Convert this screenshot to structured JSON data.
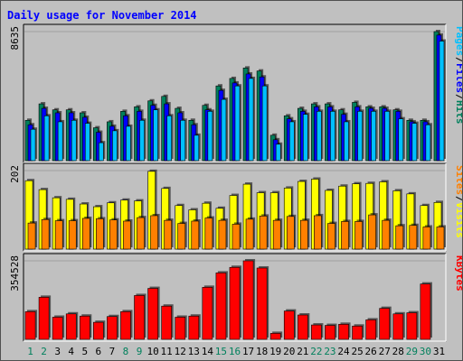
{
  "title": "Daily usage for November 2014",
  "colors": {
    "background": "#c0c0c0",
    "hits": "#00805c",
    "files": "#0000ff",
    "pages": "#00c0ff",
    "visits": "#ffff00",
    "sites": "#ff8000",
    "kbytes": "#ff0000",
    "title": "#0000ff",
    "weekday_tick": "#000000",
    "weekend_tick": "#00805c"
  },
  "chart_data": {
    "type": "bar",
    "categories": [
      "1",
      "2",
      "3",
      "4",
      "5",
      "6",
      "7",
      "8",
      "9",
      "10",
      "11",
      "12",
      "13",
      "14",
      "15",
      "16",
      "17",
      "18",
      "19",
      "20",
      "21",
      "22",
      "23",
      "24",
      "25",
      "26",
      "27",
      "28",
      "29",
      "30",
      "31"
    ],
    "weekend_days": [
      "1",
      "2",
      "8",
      "9",
      "15",
      "16",
      "22",
      "23",
      "29",
      "30"
    ],
    "panels": [
      {
        "id": "hits-files-pages",
        "ymax_label": "8635",
        "ylim": [
          0,
          8635
        ],
        "legend": [
          {
            "label": "Hits",
            "color_key": "hits"
          },
          {
            "label": "Files",
            "color_key": "files"
          },
          {
            "label": "Pages",
            "color_key": "pages"
          }
        ],
        "series": [
          {
            "name": "Hits",
            "values": [
              2700,
              3800,
              3400,
              3400,
              3200,
              2200,
              2600,
              3300,
              3600,
              4000,
              4300,
              3500,
              2700,
              3700,
              5000,
              5500,
              6200,
              6000,
              1700,
              3000,
              3500,
              3800,
              3800,
              3400,
              3900,
              3600,
              3600,
              3400,
              2700,
              2700,
              8635
            ]
          },
          {
            "name": "Files",
            "values": [
              2400,
              3500,
              3200,
              3200,
              2900,
              1900,
              2300,
              3000,
              3300,
              3700,
              3800,
              3200,
              2400,
              3400,
              4700,
              5200,
              5800,
              5600,
              1400,
              2800,
              3300,
              3600,
              3600,
              3100,
              3600,
              3500,
              3500,
              3300,
              2600,
              2600,
              8400
            ]
          },
          {
            "name": "Pages",
            "values": [
              2100,
              3000,
              2600,
              2700,
              2500,
              1200,
              2000,
              2300,
              2700,
              3400,
              3000,
              2700,
              1700,
              3300,
              4100,
              5000,
              5500,
              5000,
              1100,
              2600,
              3100,
              3300,
              3300,
              2600,
              3300,
              3300,
              3300,
              2800,
              2500,
              2400,
              8000
            ]
          }
        ]
      },
      {
        "id": "visits-sites",
        "ymax_label": "202",
        "ylim": [
          0,
          202
        ],
        "legend": [
          {
            "label": "Visits",
            "color_key": "visits"
          },
          {
            "label": "Sites",
            "color_key": "sites"
          }
        ],
        "series": [
          {
            "name": "Visits",
            "values": [
              176,
              153,
              132,
              128,
              116,
              109,
              119,
              126,
              124,
              200,
              156,
              112,
              101,
              118,
              105,
              138,
              167,
              145,
              145,
              157,
              174,
              180,
              151,
              162,
              168,
              169,
              173,
              150,
              142,
              112,
              120
            ]
          },
          {
            "name": "Sites",
            "values": [
              67,
              76,
              73,
              73,
              79,
              78,
              75,
              72,
              81,
              86,
              74,
              66,
              72,
              80,
              74,
              64,
              77,
              85,
              74,
              84,
              74,
              86,
              66,
              71,
              71,
              88,
              74,
              60,
              61,
              57,
              57
            ]
          }
        ]
      },
      {
        "id": "kbytes",
        "ymax_label": "354528",
        "ylim": [
          0,
          354528
        ],
        "legend": [
          {
            "label": "KBytes",
            "color_key": "kbytes"
          }
        ],
        "series": [
          {
            "name": "KBytes",
            "values": [
              125000,
              190000,
              100000,
              115000,
              105000,
              77000,
              103000,
              125000,
              198000,
              230000,
              150000,
              100000,
              105000,
              235000,
              300000,
              325000,
              354528,
              322000,
              27000,
              128000,
              110000,
              65000,
              63000,
              68000,
              60000,
              88000,
              140000,
              115000,
              120000,
              250000,
              0
            ]
          }
        ]
      }
    ]
  }
}
